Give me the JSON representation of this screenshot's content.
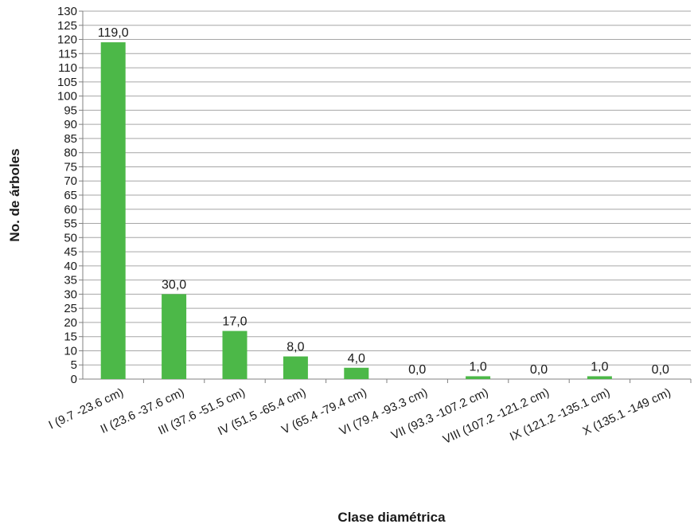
{
  "chart_data": {
    "type": "bar",
    "title": "",
    "xlabel": "Clase diamétrica",
    "ylabel": "No. de árboles",
    "ylim": [
      0,
      130
    ],
    "ytick_step": 5,
    "grid": true,
    "legend": "none",
    "bar_color": "#4cb848",
    "categories": [
      "I (9.7 -23.6 cm)",
      "II (23.6 -37.6 cm)",
      "III (37.6 -51.5 cm)",
      "IV (51.5 -65.4 cm)",
      "V (65.4 -79.4 cm)",
      "VI (79.4 -93.3 cm)",
      "VII (93.3 -107.2 cm)",
      "VIII (107.2 -121.2 cm)",
      "IX (121.2 -135.1 cm)",
      "X (135.1 -149 cm)"
    ],
    "values": [
      119,
      30,
      17,
      8,
      4,
      0,
      1,
      0,
      1,
      0
    ],
    "data_labels": [
      "119,0",
      "30,0",
      "17,0",
      "8,0",
      "4,0",
      "0,0",
      "1,0",
      "0,0",
      "1,0",
      "0,0"
    ]
  }
}
